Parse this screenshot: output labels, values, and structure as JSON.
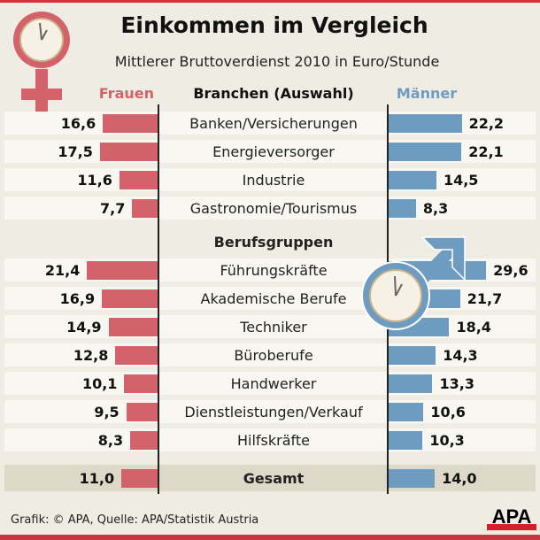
{
  "title": "Einkommen im Vergleich",
  "subtitle": "Mittlerer Bruttoverdienst 2010 in Euro/Stunde",
  "footer": "Grafik: © APA, Quelle: APA/Statistik Austria",
  "logo": "APA",
  "colors": {
    "frauen": "#d4626a",
    "maenner": "#6e9cc0",
    "accent": "#c8373f"
  },
  "chart_data": {
    "type": "bar",
    "title": "Einkommen im Vergleich",
    "subtitle": "Mittlerer Bruttoverdienst 2010 in Euro/Stunde",
    "column_headers": {
      "left": "Frauen",
      "center": "Branchen (Auswahl)",
      "right": "Männer"
    },
    "section2_header": "Berufsgruppen",
    "categories": [
      "Banken/Versicherungen",
      "Energieversorger",
      "Industrie",
      "Gastronomie/Tourismus",
      "Führungskräfte",
      "Akademische Berufe",
      "Techniker",
      "Büroberufe",
      "Handwerker",
      "Dienstleistungen/Verkauf",
      "Hilfskräfte",
      "Gesamt"
    ],
    "series": [
      {
        "name": "Frauen",
        "values": [
          16.6,
          17.5,
          11.6,
          7.7,
          21.4,
          16.9,
          14.9,
          12.8,
          10.1,
          9.5,
          8.3,
          11.0
        ],
        "labels": [
          "16,6",
          "17,5",
          "11,6",
          "7,7",
          "21,4",
          "16,9",
          "14,9",
          "12,8",
          "10,1",
          "9,5",
          "8,3",
          "11,0"
        ]
      },
      {
        "name": "Männer",
        "values": [
          22.2,
          22.1,
          14.5,
          8.3,
          29.6,
          21.7,
          18.4,
          14.3,
          13.3,
          10.6,
          10.3,
          14.0
        ],
        "labels": [
          "22,2",
          "22,1",
          "14,5",
          "8,3",
          "29,6",
          "21,7",
          "18,4",
          "14,3",
          "13,3",
          "10,6",
          "10,3",
          "14,0"
        ]
      }
    ]
  }
}
